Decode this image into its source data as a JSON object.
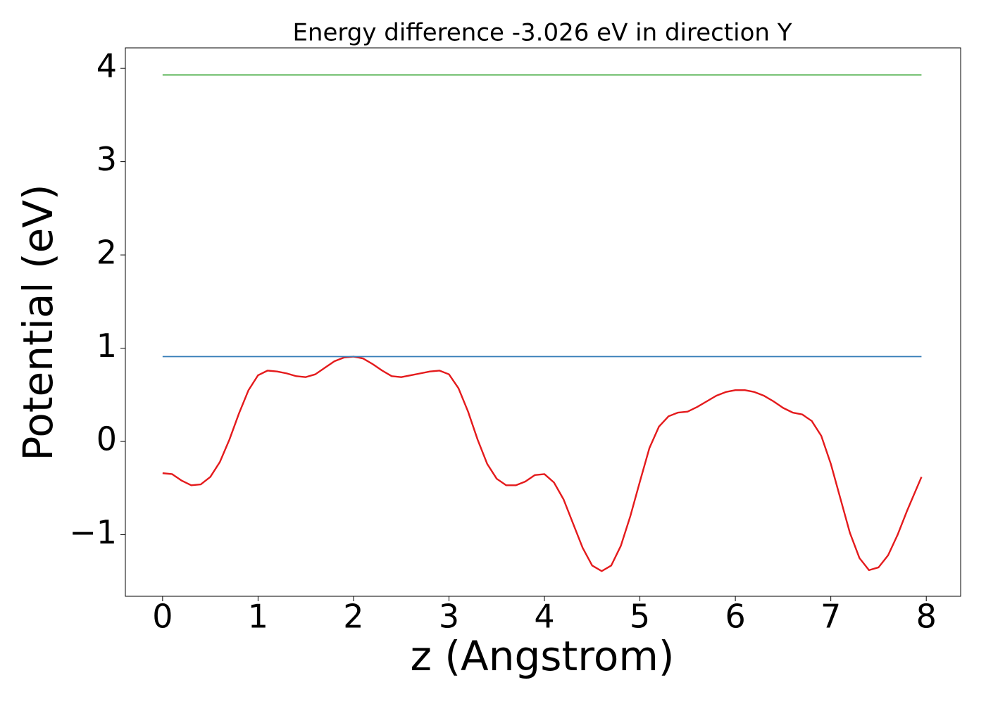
{
  "chart_data": {
    "type": "line",
    "title": "Energy difference -3.026 eV in direction Y",
    "x_label": "z (Angstrom)",
    "y_label": "Potential (eV)",
    "xlim": [
      -0.39,
      8.36
    ],
    "ylim": [
      -1.66,
      4.22
    ],
    "xticks": [
      0,
      1,
      2,
      3,
      4,
      5,
      6,
      7,
      8
    ],
    "yticks": [
      {
        "value": -1,
        "label": "−1"
      },
      0,
      1,
      2,
      3,
      4
    ],
    "grid": false,
    "series": [
      {
        "color": "#e41a1c",
        "x": [
          0,
          0.1,
          0.2,
          0.3,
          0.4,
          0.5,
          0.6,
          0.7,
          0.8,
          0.9,
          1.0,
          1.1,
          1.2,
          1.3,
          1.4,
          1.5,
          1.6,
          1.7,
          1.8,
          1.9,
          2.0,
          2.1,
          2.2,
          2.3,
          2.4,
          2.5,
          2.6,
          2.7,
          2.8,
          2.9,
          3.0,
          3.1,
          3.2,
          3.3,
          3.4,
          3.5,
          3.6,
          3.7,
          3.8,
          3.9,
          4.0,
          4.1,
          4.2,
          4.3,
          4.4,
          4.5,
          4.6,
          4.7,
          4.8,
          4.9,
          5.0,
          5.1,
          5.2,
          5.3,
          5.4,
          5.5,
          5.6,
          5.7,
          5.8,
          5.9,
          6.0,
          6.1,
          6.2,
          6.3,
          6.4,
          6.5,
          6.6,
          6.7,
          6.8,
          6.9,
          7.0,
          7.1,
          7.2,
          7.3,
          7.4,
          7.5,
          7.6,
          7.7,
          7.8,
          7.9,
          7.95
        ],
        "values": [
          -0.34,
          -0.35,
          -0.42,
          -0.47,
          -0.46,
          -0.38,
          -0.22,
          0.02,
          0.3,
          0.55,
          0.71,
          0.76,
          0.75,
          0.73,
          0.7,
          0.69,
          0.72,
          0.79,
          0.86,
          0.9,
          0.91,
          0.89,
          0.83,
          0.76,
          0.7,
          0.69,
          0.71,
          0.73,
          0.75,
          0.76,
          0.72,
          0.57,
          0.32,
          0.02,
          -0.24,
          -0.4,
          -0.47,
          -0.47,
          -0.43,
          -0.36,
          -0.35,
          -0.44,
          -0.62,
          -0.88,
          -1.14,
          -1.33,
          -1.39,
          -1.33,
          -1.12,
          -0.8,
          -0.43,
          -0.07,
          0.16,
          0.27,
          0.31,
          0.32,
          0.37,
          0.43,
          0.49,
          0.53,
          0.55,
          0.55,
          0.53,
          0.49,
          0.43,
          0.36,
          0.31,
          0.29,
          0.22,
          0.06,
          -0.24,
          -0.61,
          -0.98,
          -1.25,
          -1.38,
          -1.35,
          -1.22,
          -1.0,
          -0.74,
          -0.5,
          -0.38
        ]
      },
      {
        "color": "#377eb8",
        "x": [
          0,
          7.95
        ],
        "values": [
          0.91,
          0.91
        ]
      },
      {
        "color": "#4daf4a",
        "x": [
          0,
          7.95
        ],
        "values": [
          3.93,
          3.93
        ]
      }
    ]
  }
}
